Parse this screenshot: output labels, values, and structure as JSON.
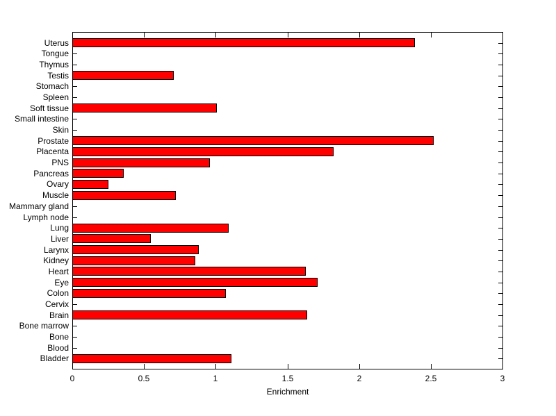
{
  "chart_data": {
    "type": "bar",
    "orientation": "horizontal",
    "title": "",
    "xlabel": "Enrichment",
    "ylabel": "",
    "xlim": [
      0,
      3
    ],
    "xtick_values": [
      0,
      0.5,
      1,
      1.5,
      2,
      2.5,
      3
    ],
    "xtick_labels": [
      "0",
      "0.5",
      "1",
      "1.5",
      "2",
      "2.5",
      "3"
    ],
    "categories_order": "top-to-bottom",
    "categories": [
      "Uterus",
      "Tongue",
      "Thymus",
      "Testis",
      "Stomach",
      "Spleen",
      "Soft tissue",
      "Small intestine",
      "Skin",
      "Prostate",
      "Placenta",
      "PNS",
      "Pancreas",
      "Ovary",
      "Muscle",
      "Mammary gland",
      "Lymph node",
      "Lung",
      "Liver",
      "Larynx",
      "Kidney",
      "Heart",
      "Eye",
      "Colon",
      "Cervix",
      "Brain",
      "Bone marrow",
      "Bone",
      "Blood",
      "Bladder"
    ],
    "values": [
      2.39,
      0,
      0,
      0.71,
      0,
      0,
      1.01,
      0,
      0,
      2.52,
      1.82,
      0.96,
      0.36,
      0.25,
      0.72,
      0,
      0,
      1.09,
      0.55,
      0.88,
      0.86,
      1.63,
      1.71,
      1.07,
      0,
      1.64,
      0,
      0,
      0,
      1.11
    ],
    "grid": false,
    "legend": null,
    "bar_color": "#ff0000",
    "bar_edge_color": "#000000",
    "axis_color": "#000000",
    "background_color": "#ffffff"
  }
}
